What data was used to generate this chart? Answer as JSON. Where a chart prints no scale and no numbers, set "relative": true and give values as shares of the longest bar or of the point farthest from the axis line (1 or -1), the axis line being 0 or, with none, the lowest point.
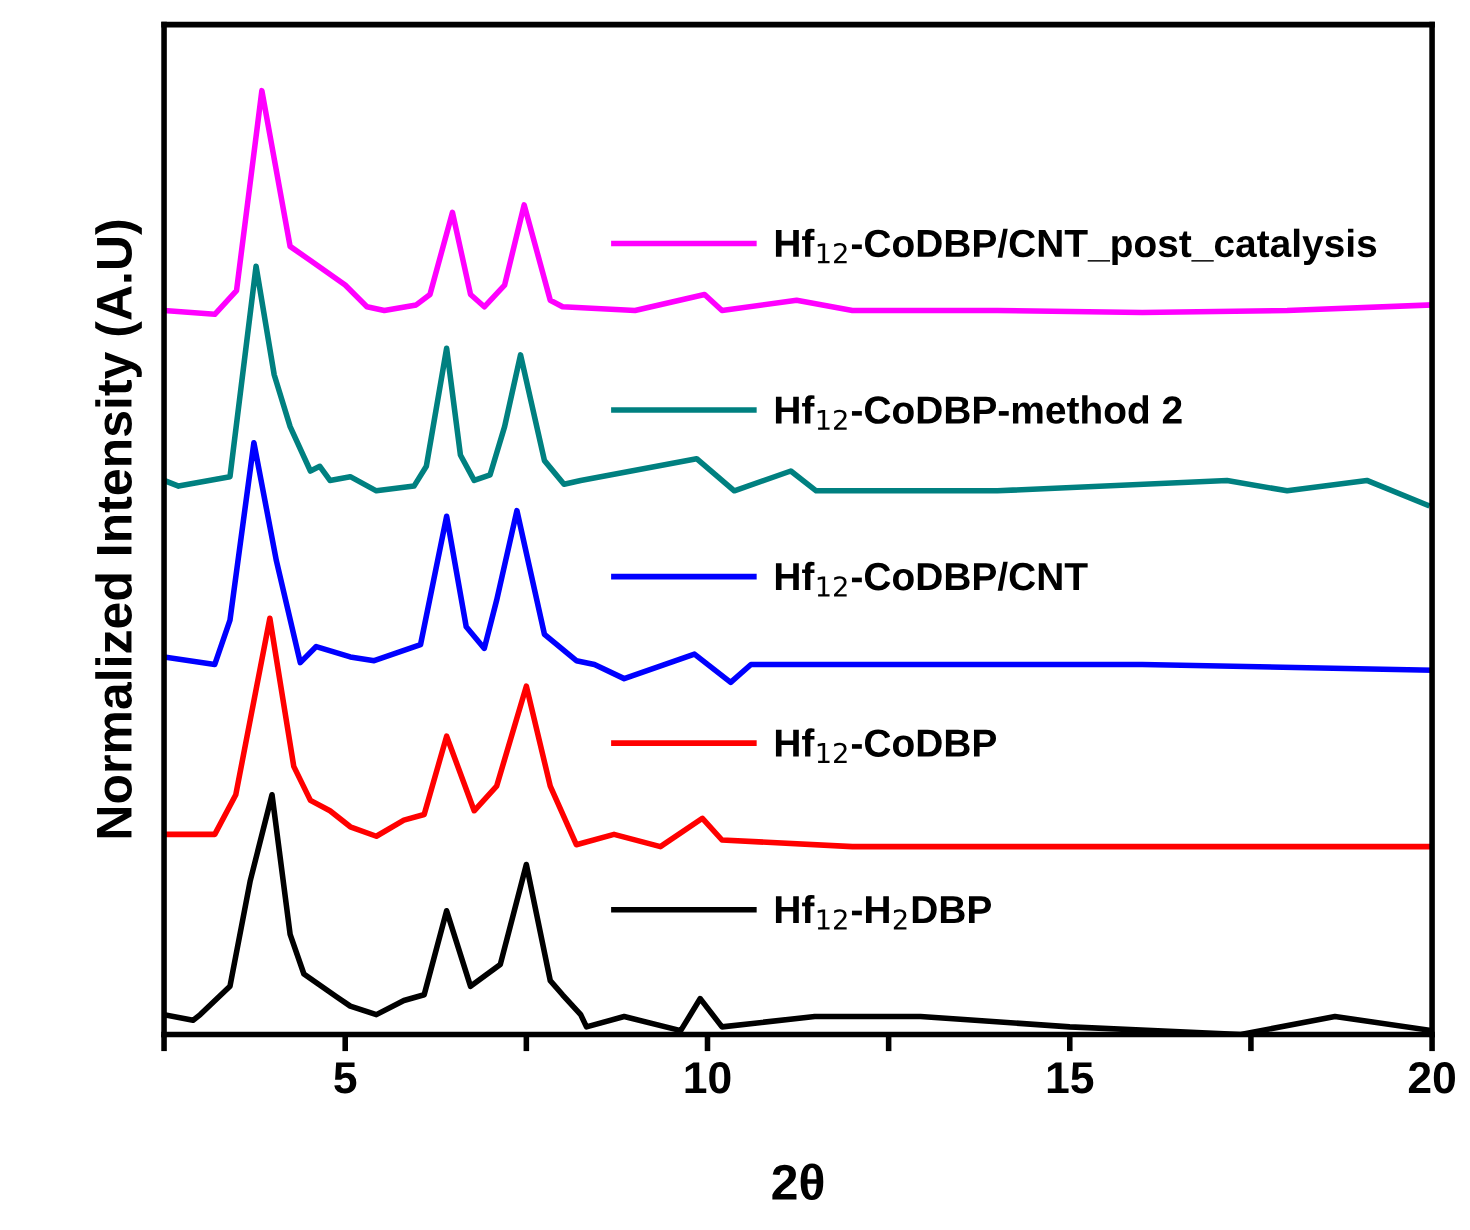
{
  "chart_data": {
    "type": "line",
    "relative": true,
    "xlabel": "2θ",
    "ylabel": "Normalized Intensity (A.U)",
    "xlim": [
      2.5,
      20
    ],
    "xticks": [
      {
        "value": 2.5,
        "label": null
      },
      5,
      {
        "value": 7.5,
        "label": null
      },
      10,
      {
        "value": 12.5,
        "label": null
      },
      15,
      {
        "value": 17.5,
        "label": null
      },
      20
    ],
    "tick_labels": "x",
    "legend": "right",
    "grid": false,
    "marker": "none",
    "line_style": "solid",
    "series": [
      {
        "name": "Hf$_{12}$-CoDBP/CNT_post_catalysis",
        "color": "#ff00ff",
        "x": [
          2.5,
          3.2,
          3.5,
          3.85,
          4.24,
          4.52,
          5.0,
          5.3,
          5.54,
          5.98,
          6.17,
          6.48,
          6.73,
          6.92,
          7.2,
          7.47,
          7.83,
          8.0,
          9.0,
          9.96,
          10.2,
          11.23,
          12.0,
          14.0,
          16.0,
          18.0,
          20.0
        ],
        "values": [
          0.767,
          0.763,
          0.788,
          1.0,
          0.835,
          0.82,
          0.794,
          0.771,
          0.767,
          0.773,
          0.784,
          0.871,
          0.784,
          0.771,
          0.794,
          0.879,
          0.778,
          0.771,
          0.767,
          0.784,
          0.767,
          0.778,
          0.767,
          0.767,
          0.765,
          0.767,
          0.773
        ]
      },
      {
        "name": "Hf$_{12}$-CoDBP-method 2",
        "color": "#008080",
        "x": [
          2.5,
          2.7,
          3.41,
          3.77,
          4.02,
          4.24,
          4.52,
          4.65,
          4.79,
          5.07,
          5.43,
          5.95,
          6.12,
          6.4,
          6.59,
          6.78,
          7.0,
          7.2,
          7.42,
          7.75,
          8.02,
          8.25,
          9.85,
          10.37,
          11.15,
          11.5,
          14.0,
          17.17,
          18.0,
          19.1,
          19.93
        ],
        "values": [
          0.587,
          0.581,
          0.591,
          0.814,
          0.699,
          0.644,
          0.597,
          0.602,
          0.587,
          0.591,
          0.576,
          0.581,
          0.602,
          0.727,
          0.614,
          0.587,
          0.593,
          0.644,
          0.72,
          0.608,
          0.583,
          0.587,
          0.61,
          0.576,
          0.597,
          0.576,
          0.576,
          0.587,
          0.576,
          0.587,
          0.561
        ]
      },
      {
        "name": "Hf$_{12}$-CoDBP/CNT",
        "color": "#0000ff",
        "x": [
          2.5,
          3.2,
          3.41,
          3.74,
          4.05,
          4.38,
          4.6,
          5.07,
          5.4,
          6.04,
          6.4,
          6.67,
          6.92,
          7.09,
          7.37,
          7.75,
          8.19,
          8.44,
          8.85,
          9.82,
          10.32,
          10.6,
          13.0,
          16.0,
          20.0
        ],
        "values": [
          0.4,
          0.392,
          0.439,
          0.627,
          0.502,
          0.394,
          0.411,
          0.4,
          0.396,
          0.413,
          0.549,
          0.432,
          0.409,
          0.46,
          0.555,
          0.424,
          0.396,
          0.392,
          0.377,
          0.403,
          0.373,
          0.392,
          0.392,
          0.392,
          0.386
        ]
      },
      {
        "name": "Hf$_{12}$-CoDBP",
        "color": "#ff0000",
        "x": [
          2.5,
          3.2,
          3.49,
          3.96,
          4.29,
          4.52,
          4.79,
          5.07,
          5.43,
          5.81,
          6.09,
          6.4,
          6.78,
          7.09,
          7.5,
          7.83,
          8.19,
          8.71,
          9.35,
          9.93,
          10.2,
          12.0,
          15.0,
          20.0
        ],
        "values": [
          0.212,
          0.212,
          0.254,
          0.441,
          0.284,
          0.248,
          0.237,
          0.22,
          0.21,
          0.227,
          0.233,
          0.316,
          0.237,
          0.263,
          0.369,
          0.263,
          0.201,
          0.212,
          0.199,
          0.229,
          0.206,
          0.199,
          0.199,
          0.199
        ]
      },
      {
        "name": "Hf$_{12}$-H$_{2}$DBP",
        "color": "#000000",
        "x": [
          2.5,
          2.9,
          3.0,
          3.41,
          3.69,
          3.99,
          4.24,
          4.43,
          4.88,
          5.07,
          5.43,
          5.81,
          6.09,
          6.4,
          6.73,
          7.14,
          7.5,
          7.83,
          8.0,
          8.25,
          8.33,
          8.85,
          9.63,
          9.9,
          10.2,
          11.48,
          12.94,
          15.0,
          17.36,
          18.66,
          20.0
        ],
        "values": [
          0.021,
          0.015,
          0.021,
          0.051,
          0.163,
          0.254,
          0.106,
          0.064,
          0.04,
          0.03,
          0.021,
          0.036,
          0.042,
          0.131,
          0.051,
          0.074,
          0.18,
          0.057,
          0.042,
          0.021,
          0.008,
          0.019,
          0.004,
          0.038,
          0.008,
          0.019,
          0.019,
          0.008,
          0.0,
          0.019,
          0.004
        ]
      }
    ]
  }
}
